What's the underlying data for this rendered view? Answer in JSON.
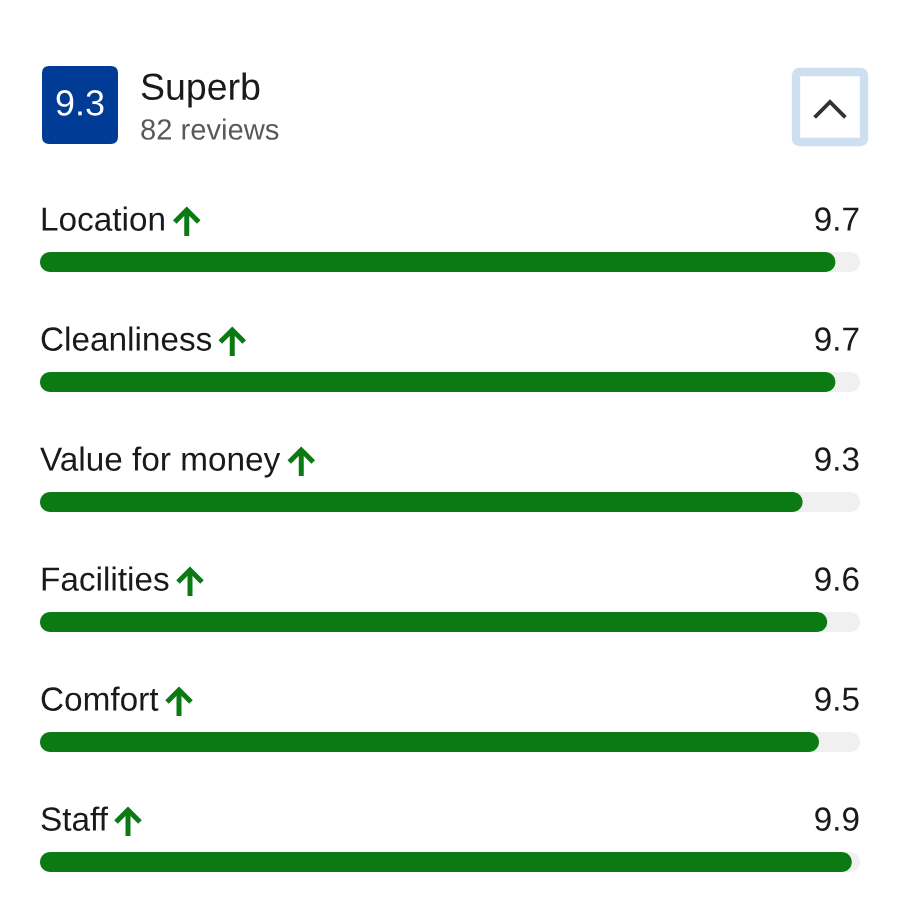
{
  "chart_data": {
    "type": "bar",
    "orientation": "horizontal",
    "title": "Superb",
    "subtitle": "82 reviews",
    "annotations": [
      "9.3"
    ],
    "categories": [
      "Location",
      "Cleanliness",
      "Value for money",
      "Facilities",
      "Comfort",
      "Staff"
    ],
    "series": [
      {
        "color": "#0b7a12",
        "values": [
          9.7,
          9.7,
          9.3,
          9.6,
          9.5,
          9.9
        ],
        "value_labels": [
          "9.7",
          "9.7",
          "9.3",
          "9.6",
          "9.5",
          "9.9"
        ]
      }
    ],
    "xlim": [
      0,
      10
    ],
    "tick_labels": "y"
  }
}
